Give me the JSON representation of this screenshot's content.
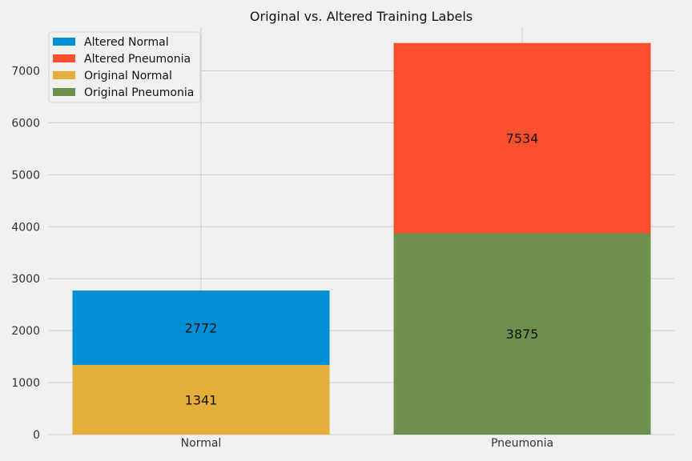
{
  "chart_data": {
    "type": "bar",
    "title": "Original vs. Altered Training Labels",
    "xlabel": "",
    "ylabel": "",
    "categories": [
      "Normal",
      "Pneumonia"
    ],
    "ylim": [
      0,
      7900
    ],
    "yticks": [
      0,
      1000,
      2000,
      3000,
      4000,
      5000,
      6000,
      7000
    ],
    "grid": true,
    "legend_position": "top-left",
    "series": [
      {
        "name": "Altered Normal",
        "color": "#008fd5",
        "values": [
          2772,
          null
        ]
      },
      {
        "name": "Altered Pneumonia",
        "color": "#fc4f30",
        "values": [
          null,
          7534
        ]
      },
      {
        "name": "Original Normal",
        "color": "#e5ae38",
        "values": [
          1341,
          null
        ]
      },
      {
        "name": "Original Pneumonia",
        "color": "#6d904f",
        "values": [
          null,
          3875
        ]
      }
    ]
  }
}
